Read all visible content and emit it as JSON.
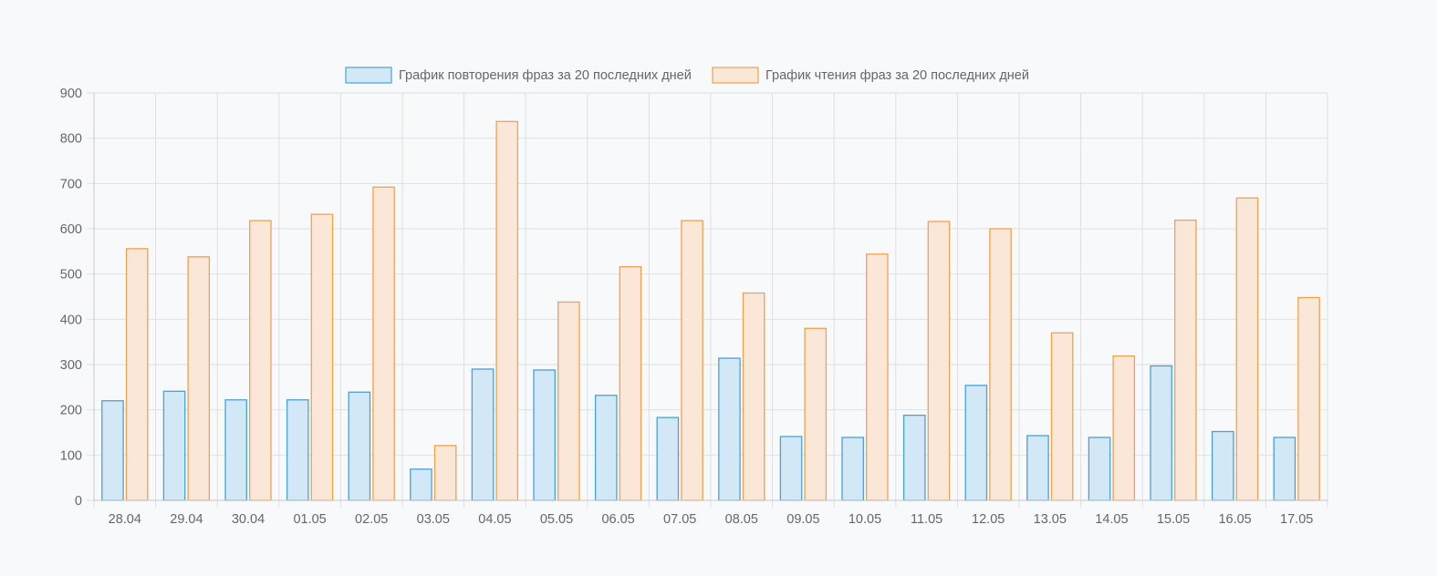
{
  "chart_data": {
    "type": "bar",
    "categories": [
      "28.04",
      "29.04",
      "30.04",
      "01.05",
      "02.05",
      "03.05",
      "04.05",
      "05.05",
      "06.05",
      "07.05",
      "08.05",
      "09.05",
      "10.05",
      "11.05",
      "12.05",
      "13.05",
      "14.05",
      "15.05",
      "16.05",
      "17.05"
    ],
    "series": [
      {
        "name": "График повторения фраз за 20 последних дней",
        "values": [
          220,
          241,
          222,
          222,
          239,
          69,
          290,
          288,
          232,
          183,
          314,
          141,
          139,
          188,
          254,
          143,
          139,
          297,
          152,
          139
        ],
        "fill": "#d2e8f7",
        "stroke": "#4aa1d4"
      },
      {
        "name": "График чтения фраз за 20 последних дней",
        "values": [
          556,
          538,
          618,
          632,
          692,
          121,
          837,
          438,
          516,
          618,
          458,
          380,
          544,
          616,
          600,
          370,
          319,
          619,
          668,
          448
        ],
        "fill": "#fbe7d8",
        "stroke": "#f0a24e"
      }
    ],
    "ylim": [
      0,
      900
    ],
    "yticks": [
      0,
      100,
      200,
      300,
      400,
      500,
      600,
      700,
      800,
      900
    ],
    "grid": true,
    "legend": "top-center",
    "colors": {
      "grid": "#e0e0e0",
      "axis": "#c8c8c8",
      "text": "#666666",
      "background": "#f8f9fa"
    }
  }
}
